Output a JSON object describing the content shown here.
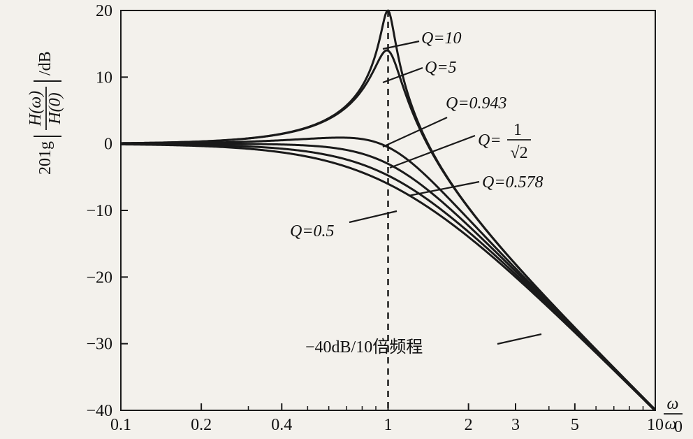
{
  "chart_data": {
    "type": "line",
    "title": "",
    "xlabel": {
      "numerator": "ω",
      "denominator": "ω",
      "denominator_sub": "0"
    },
    "ylabel": {
      "prefix": "201g",
      "numerator": "H(ω)",
      "denominator": "H(0)",
      "suffix": "/dB"
    },
    "x_scale": "log",
    "xlim": [
      0.1,
      10
    ],
    "ylim": [
      -40,
      20
    ],
    "x_ticks": [
      {
        "value": 0.1,
        "label": "0.1"
      },
      {
        "value": 0.2,
        "label": "0.2"
      },
      {
        "value": 0.4,
        "label": "0.4"
      },
      {
        "value": 1,
        "label": "1"
      },
      {
        "value": 2,
        "label": "2"
      },
      {
        "value": 3,
        "label": "3"
      },
      {
        "value": 5,
        "label": "5"
      },
      {
        "value": 10,
        "label": "10"
      }
    ],
    "y_ticks": [
      {
        "value": 20,
        "label": "20"
      },
      {
        "value": 10,
        "label": "10"
      },
      {
        "value": 0,
        "label": "0"
      },
      {
        "value": -10,
        "label": "−10"
      },
      {
        "value": -20,
        "label": "−20"
      },
      {
        "value": -30,
        "label": "−30"
      },
      {
        "value": -40,
        "label": "−40"
      }
    ],
    "grid": false,
    "reference_line": {
      "x": 1,
      "style": "dashed"
    },
    "series": [
      {
        "name": "Q=10",
        "q": 10,
        "x": [
          0.1,
          0.2,
          0.3,
          0.4,
          0.5,
          0.6,
          0.7,
          0.8,
          0.9,
          0.95,
          1,
          1.05,
          1.1,
          1.2,
          1.5,
          2,
          3,
          5,
          10
        ],
        "y": [
          0.1,
          0.3,
          0.8,
          1.6,
          2.5,
          3.9,
          6.0,
          9.5,
          15.5,
          18.5,
          20.0,
          18.6,
          15.8,
          10.3,
          2.9,
          -3.5,
          -12.5,
          -27.5,
          -40
        ]
      },
      {
        "name": "Q=5",
        "q": 5,
        "x": [
          0.1,
          0.2,
          0.3,
          0.4,
          0.5,
          0.6,
          0.7,
          0.8,
          0.9,
          0.95,
          1,
          1.05,
          1.1,
          1.2,
          1.5,
          2,
          3,
          5,
          10
        ],
        "y": [
          0.1,
          0.3,
          0.8,
          1.6,
          2.5,
          3.8,
          5.8,
          8.8,
          12.5,
          13.8,
          14.0,
          13.4,
          12.3,
          9.4,
          2.9,
          -3.6,
          -12.5,
          -27.5,
          -40
        ]
      },
      {
        "name": "Q=0.943",
        "q": 0.943,
        "x": [
          0.1,
          0.2,
          0.3,
          0.4,
          0.5,
          0.6,
          0.7,
          0.8,
          0.9,
          1,
          1.2,
          1.5,
          2,
          3,
          5,
          10
        ],
        "y": [
          0,
          0.1,
          0.3,
          0.5,
          0.8,
          1.0,
          1.1,
          1.0,
          0.7,
          -0.3,
          -2.7,
          -6.9,
          -12.6,
          -20.0,
          -28.1,
          -40
        ]
      },
      {
        "name": "Q=1/√2",
        "q": 0.7071,
        "x": [
          0.1,
          0.2,
          0.3,
          0.4,
          0.5,
          0.6,
          0.7,
          0.8,
          0.9,
          1,
          1.2,
          1.5,
          2,
          3,
          5,
          10
        ],
        "y": [
          0,
          0,
          0,
          -0.1,
          -0.3,
          -0.6,
          -1.1,
          -1.8,
          -2.4,
          -3.0,
          -4.7,
          -7.9,
          -12.3,
          -19.1,
          -28.0,
          -40
        ]
      },
      {
        "name": "Q=0.578",
        "q": 0.578,
        "x": [
          0.1,
          0.2,
          0.3,
          0.4,
          0.5,
          0.6,
          0.7,
          0.8,
          0.9,
          1,
          1.2,
          1.5,
          2,
          3,
          5,
          10
        ],
        "y": [
          0,
          -0.1,
          -0.3,
          -0.6,
          -1.0,
          -1.6,
          -2.4,
          -3.3,
          -4.2,
          -4.9,
          -6.5,
          -9.2,
          -13.0,
          -19.4,
          -28.0,
          -40
        ]
      },
      {
        "name": "Q=0.5",
        "q": 0.5,
        "x": [
          0.1,
          0.2,
          0.3,
          0.4,
          0.5,
          0.6,
          0.7,
          0.8,
          0.9,
          1,
          1.2,
          1.5,
          2,
          3,
          5,
          10
        ],
        "y": [
          -0.1,
          -0.3,
          -0.7,
          -1.3,
          -2.0,
          -2.8,
          -3.7,
          -4.6,
          -5.4,
          -6.0,
          -7.6,
          -10.2,
          -14.0,
          -20.0,
          -28.3,
          -40
        ]
      }
    ],
    "annotations": [
      {
        "text": "Q=10",
        "target_series": "Q=10"
      },
      {
        "text": "Q=5",
        "target_series": "Q=5"
      },
      {
        "text": "Q=0.943",
        "target_series": "Q=0.943"
      },
      {
        "text": "Q=",
        "fraction_numerator": "1",
        "fraction_denominator": "√2",
        "target_series": "Q=1/√2"
      },
      {
        "text": "Q=0.578",
        "target_series": "Q=0.578"
      },
      {
        "text": "Q=0.5",
        "target_series": "Q=0.5"
      },
      {
        "text": "−40dB/10倍频程"
      }
    ],
    "colors": {
      "line": "#1a1a1a",
      "background": "#f3f1ec"
    }
  }
}
